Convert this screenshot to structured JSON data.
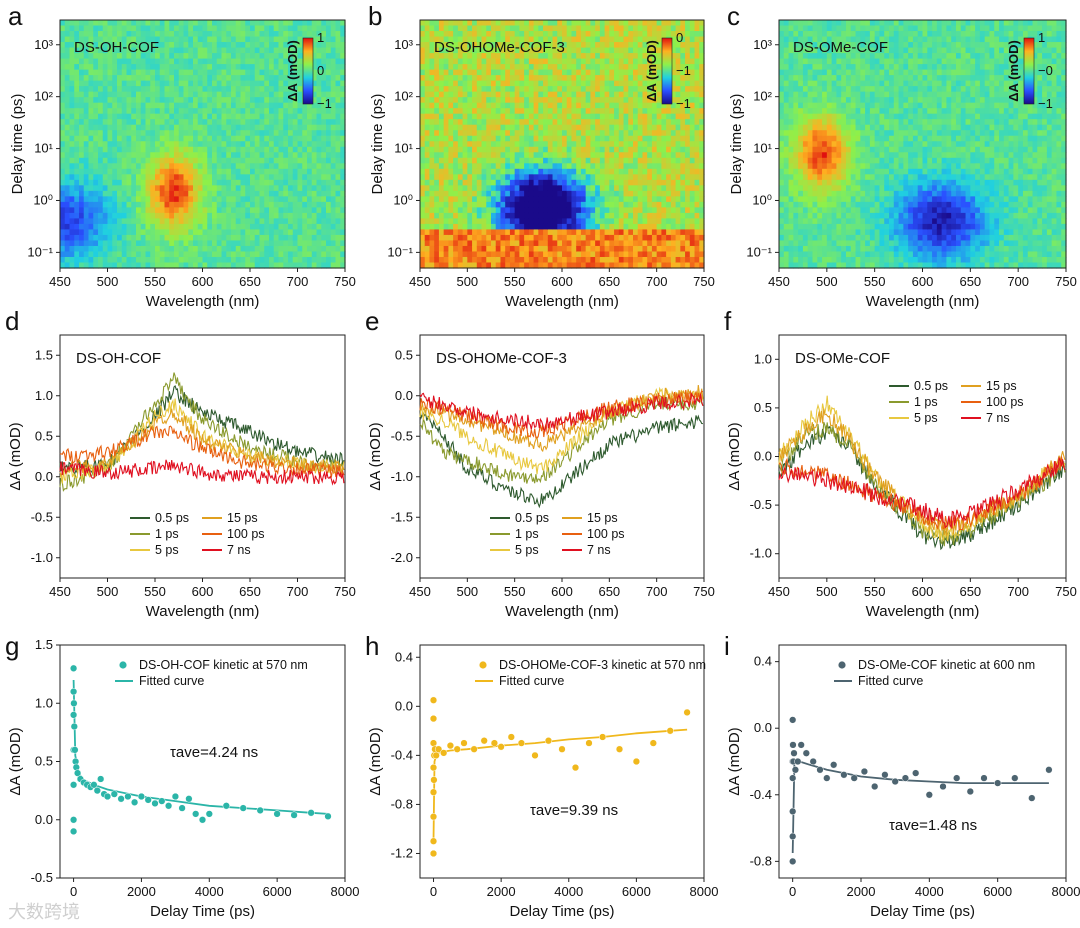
{
  "watermark": "大数跨境",
  "heatmaps": [
    {
      "label": "a",
      "title": "DS-OH-COF",
      "xlabel": "Wavelength (nm)",
      "ylabel": "Delay time (ps)",
      "xticks": [
        "450",
        "500",
        "550",
        "600",
        "650",
        "700",
        "750"
      ],
      "yticks": [
        "10⁻¹",
        "10⁰",
        "10¹",
        "10²",
        "10³"
      ],
      "cb_label": "ΔA (mOD)",
      "cb_ticks": [
        "1",
        "0",
        "−1"
      ]
    },
    {
      "label": "b",
      "title": "DS-OHOMe-COF-3",
      "xlabel": "Wavelength (nm)",
      "ylabel": "Delay time (ps)",
      "xticks": [
        "450",
        "500",
        "550",
        "600",
        "650",
        "700",
        "750"
      ],
      "yticks": [
        "10⁻¹",
        "10⁰",
        "10¹",
        "10²",
        "10³"
      ],
      "cb_label": "ΔA (mOD)",
      "cb_ticks": [
        "0",
        "−1",
        "−1"
      ]
    },
    {
      "label": "c",
      "title": "DS-OMe-COF",
      "xlabel": "Wavelength (nm)",
      "ylabel": "Delay time (ps)",
      "xticks": [
        "450",
        "500",
        "550",
        "600",
        "650",
        "700",
        "750"
      ],
      "yticks": [
        "10⁻¹",
        "10⁰",
        "10¹",
        "10²",
        "10³"
      ],
      "cb_label": "ΔA (mOD)",
      "cb_ticks": [
        "1",
        "−0",
        "−1"
      ]
    }
  ],
  "chart_data": [
    {
      "type": "heatmap",
      "label": "a",
      "title": "DS-OH-COF",
      "xlabel": "Wavelength (nm)",
      "ylabel": "Delay time (ps)",
      "xlim": [
        450,
        750
      ],
      "ylim_log": [
        0.05,
        3000
      ],
      "clim": [
        -1,
        1
      ],
      "features": [
        {
          "name": "positive band",
          "center_nm": 570,
          "peak_delay_ps": 1.5,
          "value": 0.9
        },
        {
          "name": "negative edge",
          "center_nm": 455,
          "peak_delay_ps": 0.4,
          "value": -0.7
        }
      ]
    },
    {
      "type": "heatmap",
      "label": "b",
      "title": "DS-OHOMe-COF-3",
      "xlabel": "Wavelength (nm)",
      "ylabel": "Delay time (ps)",
      "xlim": [
        450,
        750
      ],
      "ylim_log": [
        0.05,
        3000
      ],
      "clim": [
        -1,
        0
      ],
      "features": [
        {
          "name": "negative band",
          "center_nm": 580,
          "peak_delay_ps": 0.7,
          "value": -1.0
        }
      ]
    },
    {
      "type": "heatmap",
      "label": "c",
      "title": "DS-OMe-COF",
      "xlabel": "Wavelength (nm)",
      "ylabel": "Delay time (ps)",
      "xlim": [
        450,
        750
      ],
      "ylim_log": [
        0.05,
        3000
      ],
      "clim": [
        -1,
        1
      ],
      "features": [
        {
          "name": "positive band",
          "center_nm": 495,
          "peak_delay_ps": 8,
          "value": 0.9
        },
        {
          "name": "negative band",
          "center_nm": 620,
          "peak_delay_ps": 0.4,
          "value": -0.9
        }
      ]
    },
    {
      "type": "line",
      "label": "d",
      "title": "DS-OH-COF",
      "xlabel": "Wavelength (nm)",
      "ylabel": "ΔA (mOD)",
      "xlim": [
        450,
        750
      ],
      "ylim": [
        -1.25,
        1.75
      ],
      "series": [
        {
          "name": "0.5 ps",
          "color": "#2e5a2e",
          "x": [
            450,
            500,
            550,
            570,
            600,
            650,
            700,
            750
          ],
          "values": [
            0.1,
            0.15,
            0.75,
            1.05,
            0.8,
            0.55,
            0.3,
            0.2
          ]
        },
        {
          "name": "1 ps",
          "color": "#8a9a2e",
          "x": [
            450,
            500,
            550,
            570,
            600,
            650,
            700,
            750
          ],
          "values": [
            -0.1,
            0.1,
            0.9,
            1.2,
            0.7,
            0.35,
            0.2,
            0.1
          ]
        },
        {
          "name": "5 ps",
          "color": "#e8c840",
          "x": [
            450,
            500,
            550,
            570,
            600,
            650,
            700,
            750
          ],
          "values": [
            0.0,
            0.1,
            0.75,
            0.9,
            0.5,
            0.25,
            0.15,
            0.1
          ]
        },
        {
          "name": "15 ps",
          "color": "#e0a020",
          "x": [
            450,
            500,
            550,
            570,
            600,
            650,
            700,
            750
          ],
          "values": [
            0.1,
            0.15,
            0.65,
            0.8,
            0.45,
            0.25,
            0.15,
            0.1
          ]
        },
        {
          "name": "100 ps",
          "color": "#e86010",
          "x": [
            450,
            500,
            550,
            570,
            600,
            650,
            700,
            750
          ],
          "values": [
            0.25,
            0.3,
            0.55,
            0.55,
            0.35,
            0.15,
            0.1,
            0.05
          ]
        },
        {
          "name": "7 ns",
          "color": "#e01020",
          "x": [
            450,
            500,
            550,
            570,
            600,
            650,
            700,
            750
          ],
          "values": [
            0.1,
            0.05,
            0.1,
            0.15,
            0.05,
            0.0,
            0.0,
            0.0
          ]
        }
      ]
    },
    {
      "type": "line",
      "label": "e",
      "title": "DS-OHOMe-COF-3",
      "xlabel": "Wavelength (nm)",
      "ylabel": "ΔA (mOD)",
      "xlim": [
        450,
        750
      ],
      "ylim": [
        -2.25,
        0.75
      ],
      "series": [
        {
          "name": "0.5 ps",
          "color": "#2e5a2e",
          "x": [
            450,
            475,
            500,
            550,
            580,
            600,
            650,
            700,
            750
          ],
          "values": [
            -0.2,
            -0.5,
            -0.9,
            -1.2,
            -1.3,
            -1.1,
            -0.6,
            -0.4,
            -0.3
          ]
        },
        {
          "name": "1 ps",
          "color": "#8a9a2e",
          "x": [
            450,
            475,
            500,
            550,
            580,
            600,
            650,
            700,
            750
          ],
          "values": [
            -0.3,
            -0.7,
            -0.8,
            -1.0,
            -1.0,
            -0.8,
            -0.3,
            -0.1,
            -0.1
          ]
        },
        {
          "name": "5 ps",
          "color": "#e8c840",
          "x": [
            450,
            475,
            500,
            550,
            580,
            600,
            650,
            700,
            750
          ],
          "values": [
            -0.2,
            -0.3,
            -0.5,
            -0.8,
            -0.9,
            -0.7,
            -0.2,
            0.0,
            0.0
          ]
        },
        {
          "name": "15 ps",
          "color": "#e0a020",
          "x": [
            450,
            475,
            500,
            550,
            580,
            600,
            650,
            700,
            750
          ],
          "values": [
            -0.1,
            -0.2,
            -0.3,
            -0.5,
            -0.6,
            -0.5,
            -0.2,
            0.0,
            0.05
          ]
        },
        {
          "name": "100 ps",
          "color": "#e86010",
          "x": [
            450,
            475,
            500,
            550,
            580,
            600,
            650,
            700,
            750
          ],
          "values": [
            -0.1,
            -0.15,
            -0.25,
            -0.4,
            -0.45,
            -0.35,
            -0.15,
            -0.05,
            0.0
          ]
        },
        {
          "name": "7 ns",
          "color": "#e01020",
          "x": [
            450,
            475,
            500,
            550,
            580,
            600,
            650,
            700,
            750
          ],
          "values": [
            -0.05,
            -0.1,
            -0.2,
            -0.3,
            -0.35,
            -0.3,
            -0.2,
            -0.1,
            -0.05
          ]
        }
      ]
    },
    {
      "type": "line",
      "label": "f",
      "title": "DS-OMe-COF",
      "xlabel": "Wavelength (nm)",
      "ylabel": "ΔA (mOD)",
      "xlim": [
        450,
        750
      ],
      "ylim": [
        -1.25,
        1.25
      ],
      "series": [
        {
          "name": "0.5 ps",
          "color": "#2e5a2e",
          "x": [
            450,
            475,
            500,
            525,
            550,
            600,
            625,
            650,
            700,
            750
          ],
          "values": [
            -0.2,
            0.1,
            0.25,
            0.1,
            -0.3,
            -0.8,
            -0.9,
            -0.8,
            -0.5,
            -0.1
          ]
        },
        {
          "name": "1 ps",
          "color": "#8a9a2e",
          "x": [
            450,
            475,
            500,
            525,
            550,
            600,
            625,
            650,
            700,
            750
          ],
          "values": [
            -0.1,
            0.2,
            0.3,
            0.1,
            -0.3,
            -0.75,
            -0.85,
            -0.75,
            -0.45,
            -0.1
          ]
        },
        {
          "name": "5 ps",
          "color": "#e8c840",
          "x": [
            450,
            475,
            500,
            525,
            550,
            600,
            625,
            650,
            700,
            750
          ],
          "values": [
            0.0,
            0.3,
            0.55,
            0.2,
            -0.2,
            -0.7,
            -0.8,
            -0.7,
            -0.4,
            0.0
          ]
        },
        {
          "name": "15 ps",
          "color": "#e0a020",
          "x": [
            450,
            475,
            500,
            525,
            550,
            600,
            625,
            650,
            700,
            750
          ],
          "values": [
            0.0,
            0.25,
            0.45,
            0.15,
            -0.2,
            -0.65,
            -0.75,
            -0.65,
            -0.4,
            0.0
          ]
        },
        {
          "name": "100 ps",
          "color": "#e86010",
          "x": [
            450,
            475,
            500,
            525,
            550,
            600,
            625,
            650,
            700,
            750
          ],
          "values": [
            -0.1,
            -0.15,
            -0.2,
            -0.3,
            -0.4,
            -0.6,
            -0.7,
            -0.65,
            -0.4,
            -0.05
          ]
        },
        {
          "name": "7 ns",
          "color": "#e01020",
          "x": [
            450,
            475,
            500,
            525,
            550,
            600,
            625,
            650,
            700,
            750
          ],
          "values": [
            -0.15,
            -0.2,
            -0.25,
            -0.3,
            -0.4,
            -0.55,
            -0.65,
            -0.6,
            -0.35,
            -0.05
          ]
        }
      ]
    },
    {
      "type": "scatter",
      "label": "g",
      "xlabel": "Delay Time (ps)",
      "ylabel": "ΔA (mOD)",
      "xlim": [
        -400,
        8000
      ],
      "ylim": [
        -0.5,
        1.5
      ],
      "series": [
        {
          "name": "DS-OH-COF kinetic at 570 nm",
          "color": "#2bb5a8",
          "x": [
            0,
            0,
            0,
            0,
            0,
            0,
            0,
            10,
            20,
            40,
            60,
            80,
            120,
            200,
            300,
            400,
            500,
            600,
            700,
            800,
            900,
            1000,
            1200,
            1400,
            1600,
            1800,
            2000,
            2200,
            2400,
            2600,
            2800,
            3000,
            3200,
            3400,
            3600,
            3800,
            4000,
            4500,
            5000,
            5500,
            6000,
            6500,
            7000,
            7500
          ],
          "values": [
            1.3,
            1.1,
            0.9,
            0.6,
            0.3,
            0.0,
            -0.1,
            1.0,
            0.8,
            0.6,
            0.5,
            0.45,
            0.4,
            0.35,
            0.32,
            0.3,
            0.28,
            0.3,
            0.25,
            0.35,
            0.22,
            0.2,
            0.22,
            0.18,
            0.2,
            0.15,
            0.2,
            0.17,
            0.14,
            0.16,
            0.12,
            0.2,
            0.1,
            0.18,
            0.05,
            0.0,
            0.05,
            0.12,
            0.1,
            0.08,
            0.05,
            0.04,
            0.06,
            0.03
          ]
        },
        {
          "name": "Fitted curve",
          "type": "line",
          "color": "#2bb5a8",
          "x": [
            0,
            50,
            150,
            300,
            600,
            1000,
            2000,
            3000,
            4000,
            5000,
            6000,
            7000,
            7500
          ],
          "values": [
            1.2,
            0.55,
            0.4,
            0.34,
            0.3,
            0.26,
            0.2,
            0.16,
            0.12,
            0.1,
            0.08,
            0.06,
            0.05
          ]
        }
      ],
      "annotation": "τave=4.24 ns"
    },
    {
      "type": "scatter",
      "label": "h",
      "xlabel": "Delay Time (ps)",
      "ylabel": "ΔA (mOD)",
      "xlim": [
        -400,
        8000
      ],
      "ylim": [
        -1.4,
        0.5
      ],
      "series": [
        {
          "name": "DS-OHOMe-COF-3 kinetic at 570 nm",
          "color": "#f0b81c",
          "x": [
            0,
            0,
            0,
            0,
            0,
            0,
            0,
            0,
            10,
            20,
            40,
            80,
            150,
            300,
            500,
            700,
            900,
            1200,
            1500,
            1800,
            2000,
            2300,
            2600,
            3000,
            3400,
            3800,
            4200,
            4600,
            5000,
            5500,
            6000,
            6500,
            7000,
            7500
          ],
          "values": [
            0.05,
            -0.1,
            -0.3,
            -0.5,
            -0.7,
            -0.9,
            -1.1,
            -1.2,
            -0.6,
            -0.4,
            -0.35,
            -0.4,
            -0.35,
            -0.38,
            -0.32,
            -0.35,
            -0.3,
            -0.35,
            -0.28,
            -0.3,
            -0.33,
            -0.25,
            -0.3,
            -0.4,
            -0.28,
            -0.35,
            -0.5,
            -0.3,
            -0.25,
            -0.35,
            -0.45,
            -0.3,
            -0.2,
            -0.05
          ]
        },
        {
          "name": "Fitted curve",
          "type": "line",
          "color": "#f0b81c",
          "x": [
            0,
            30,
            100,
            500,
            1000,
            2000,
            3000,
            4000,
            5000,
            6000,
            7000,
            7500
          ],
          "values": [
            -1.1,
            -0.45,
            -0.38,
            -0.36,
            -0.35,
            -0.32,
            -0.3,
            -0.27,
            -0.25,
            -0.22,
            -0.2,
            -0.19
          ]
        }
      ],
      "annotation": "τave=9.39 ns"
    },
    {
      "type": "scatter",
      "label": "i",
      "xlabel": "Delay Time (ps)",
      "ylabel": "ΔA (mOD)",
      "xlim": [
        -400,
        8000
      ],
      "ylim": [
        -0.9,
        0.5
      ],
      "series": [
        {
          "name": "DS-OMe-COF kinetic at 600 nm",
          "color": "#4d6470",
          "x": [
            0,
            0,
            0,
            0,
            0,
            0,
            0,
            10,
            20,
            40,
            80,
            150,
            250,
            400,
            600,
            800,
            1000,
            1200,
            1500,
            1800,
            2100,
            2400,
            2700,
            3000,
            3300,
            3600,
            4000,
            4400,
            4800,
            5200,
            5600,
            6000,
            6500,
            7000,
            7500
          ],
          "values": [
            0.05,
            -0.1,
            -0.3,
            -0.5,
            -0.65,
            -0.8,
            -0.2,
            -0.1,
            -0.2,
            -0.15,
            -0.25,
            -0.2,
            -0.1,
            -0.15,
            -0.2,
            -0.25,
            -0.3,
            -0.22,
            -0.28,
            -0.3,
            -0.26,
            -0.35,
            -0.28,
            -0.32,
            -0.3,
            -0.27,
            -0.4,
            -0.35,
            -0.3,
            -0.38,
            -0.3,
            -0.33,
            -0.3,
            -0.42,
            -0.25
          ]
        },
        {
          "name": "Fitted curve",
          "type": "line",
          "color": "#4d6470",
          "x": [
            0,
            50,
            200,
            500,
            1000,
            2000,
            3000,
            4000,
            5000,
            6000,
            7000,
            7500
          ],
          "values": [
            -0.75,
            -0.2,
            -0.2,
            -0.22,
            -0.25,
            -0.29,
            -0.31,
            -0.32,
            -0.33,
            -0.33,
            -0.33,
            -0.33
          ]
        }
      ],
      "annotation": "τave=1.48 ns"
    }
  ]
}
